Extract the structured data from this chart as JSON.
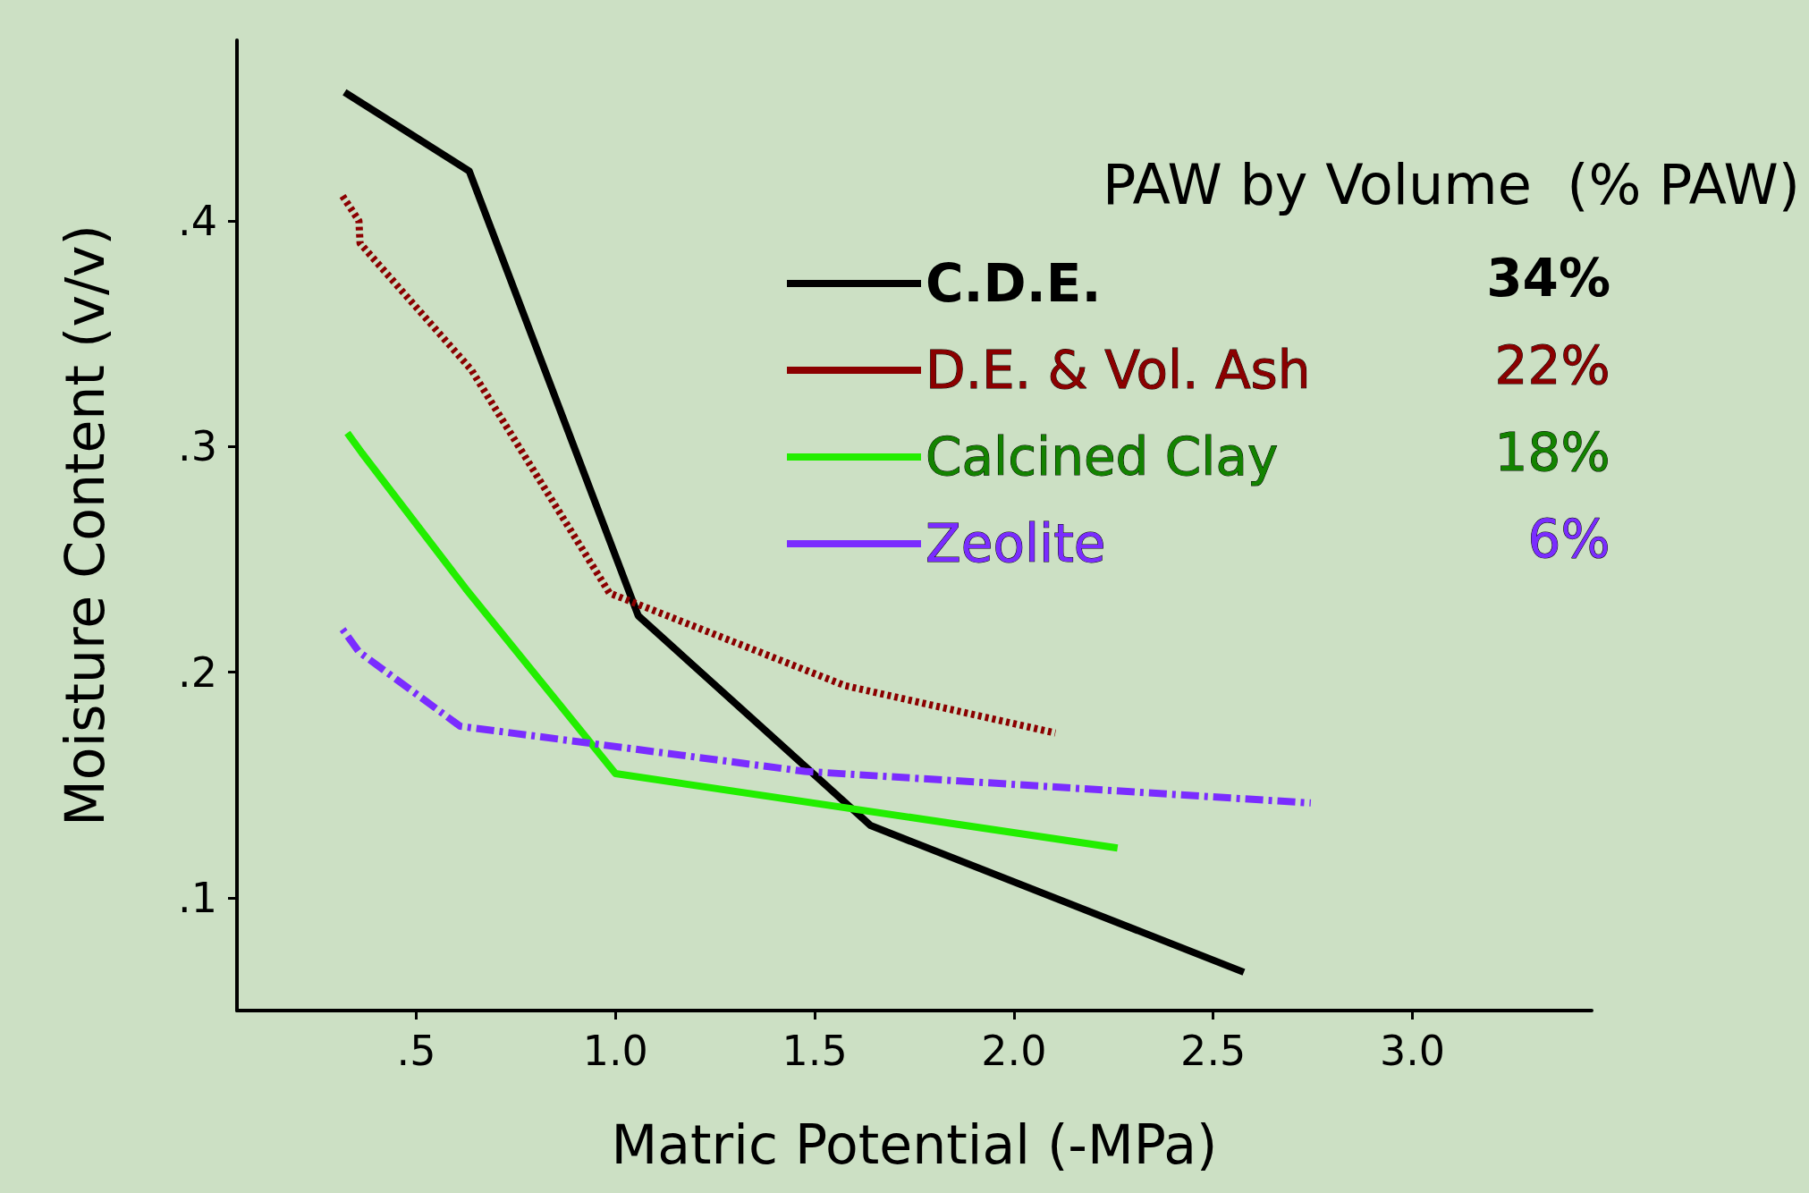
{
  "chart_data": {
    "type": "line",
    "xlabel": "Matric Potential (-MPa)",
    "ylabel": "Moisture Content (v/v)",
    "legend_title": "PAW by Volume  (% PAW)",
    "xlim": [
      0.05,
      3.45
    ],
    "ylim": [
      0.05,
      0.48
    ],
    "xticks": [
      {
        "value": 0.5,
        "label": ".5"
      },
      {
        "value": 1,
        "label": "1.0"
      },
      {
        "value": 1.5,
        "label": "1.5"
      },
      {
        "value": 2,
        "label": "2.0"
      },
      {
        "value": 2.5,
        "label": "2.5"
      },
      {
        "value": 3,
        "label": "3.0"
      }
    ],
    "yticks": [
      {
        "value": 0.1,
        "label": ".1"
      },
      {
        "value": 0.2,
        "label": ".2"
      },
      {
        "value": 0.3,
        "label": ".3"
      },
      {
        "value": 0.4,
        "label": ".4"
      }
    ],
    "grid": false,
    "legend": "top right",
    "marker": "none",
    "annotations": [
      "34%",
      "22%",
      "18%",
      "6%"
    ],
    "series": [
      {
        "name": "C.D.E.",
        "color": "#000000",
        "line_style": "solid",
        "x": [
          0.32,
          0.633,
          1.057,
          1.64,
          2.577
        ],
        "values": [
          0.457,
          0.422,
          0.225,
          0.132,
          0.067
        ]
      },
      {
        "name": "D.E. & Vol. Ash",
        "color": "#8b0000",
        "line_style": "dotted",
        "x": [
          0.315,
          0.356,
          0.359,
          0.638,
          0.985,
          1.576,
          2.104
        ],
        "values": [
          0.411,
          0.4,
          0.39,
          0.334,
          0.235,
          0.194,
          0.173
        ]
      },
      {
        "name": "Calcined Clay",
        "color": "#22ee00",
        "line_style": "solid",
        "x": [
          0.327,
          0.364,
          0.624,
          1.0,
          2.26
        ],
        "values": [
          0.306,
          0.297,
          0.237,
          0.155,
          0.122
        ]
      },
      {
        "name": "Zeolite",
        "color": "#7a2cff",
        "line_style": "dashed",
        "x": [
          0.315,
          0.356,
          0.61,
          1.475,
          2.745
        ],
        "values": [
          0.219,
          0.209,
          0.176,
          0.156,
          0.142
        ]
      }
    ]
  }
}
